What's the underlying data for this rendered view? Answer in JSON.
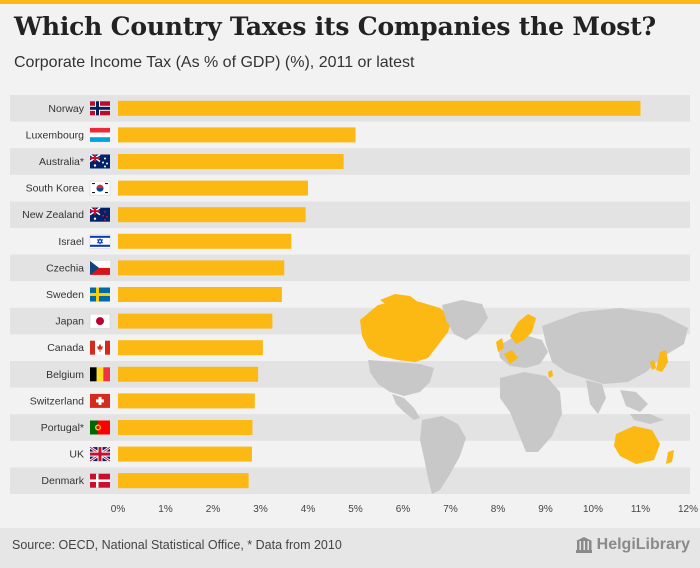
{
  "header": {
    "title": "Which Country Taxes its Companies the Most?",
    "subtitle": "Corporate Income Tax (As % of GDP) (%), 2011 or latest"
  },
  "footer": {
    "source": "Source: OECD, National Statistical Office, * Data from 2010",
    "logo_text": "HelgiLibrary"
  },
  "colors": {
    "bar": "#fcb813",
    "highlight": "#fcb813",
    "map_land": "#c8c8c8",
    "row_band": "#e3e3e3"
  },
  "chart_data": {
    "type": "bar",
    "orientation": "horizontal",
    "title": "Which Country Taxes its Companies the Most?",
    "subtitle": "Corporate Income Tax (As % of GDP) (%), 2011 or latest",
    "xlabel": "",
    "ylabel": "",
    "xlim": [
      0,
      12
    ],
    "ticks": [
      "0%",
      "1%",
      "2%",
      "3%",
      "4%",
      "5%",
      "6%",
      "7%",
      "8%",
      "9%",
      "10%",
      "11%",
      "12%"
    ],
    "grid": true,
    "categories": [
      "Norway",
      "Luxembourg",
      "Australia*",
      "South Korea",
      "New Zealand",
      "Israel",
      "Czechia",
      "Sweden",
      "Japan",
      "Canada",
      "Belgium",
      "Switzerland",
      "Portugal*",
      "UK",
      "Denmark"
    ],
    "flags": [
      "norway-flag-icon",
      "luxembourg-flag-icon",
      "australia-flag-icon",
      "south-korea-flag-icon",
      "new-zealand-flag-icon",
      "israel-flag-icon",
      "czechia-flag-icon",
      "sweden-flag-icon",
      "japan-flag-icon",
      "canada-flag-icon",
      "belgium-flag-icon",
      "switzerland-flag-icon",
      "portugal-flag-icon",
      "uk-flag-icon",
      "denmark-flag-icon"
    ],
    "values": [
      11.0,
      5.0,
      4.75,
      4.0,
      3.95,
      3.65,
      3.5,
      3.45,
      3.25,
      3.05,
      2.95,
      2.88,
      2.83,
      2.82,
      2.75
    ]
  }
}
